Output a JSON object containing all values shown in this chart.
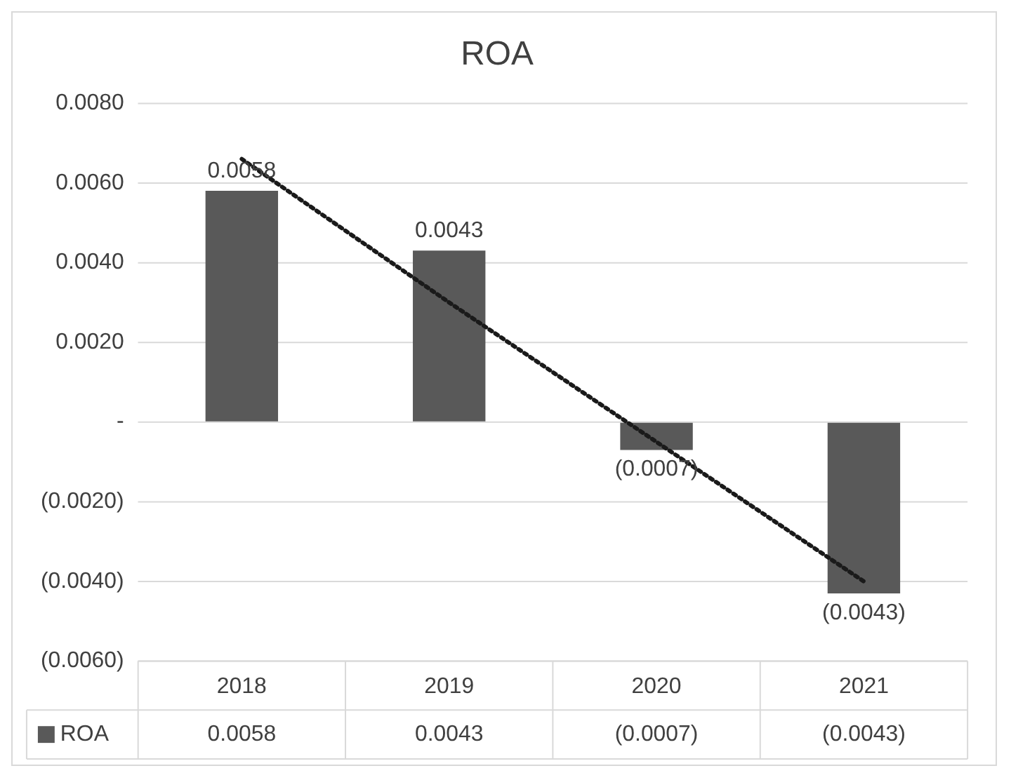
{
  "chart_data": {
    "type": "bar",
    "title": "ROA",
    "categories": [
      "2018",
      "2019",
      "2020",
      "2021"
    ],
    "series": [
      {
        "name": "ROA",
        "color": "#595959",
        "values": [
          0.0058,
          0.0043,
          -0.0007,
          -0.0043
        ],
        "value_labels": [
          "0.0058",
          "0.0043",
          "(0.0007)",
          "(0.0043)"
        ]
      },
      {
        "type": "line",
        "color": "#1a1a1a",
        "line_style": "dotted",
        "values": [
          0.0066,
          0.003,
          -0.0005,
          -0.004
        ]
      }
    ],
    "ylim": [
      -0.006,
      0.008
    ],
    "yticks": [
      {
        "value": -0.006,
        "label": "(0.0060)"
      },
      {
        "value": -0.004,
        "label": "(0.0040)"
      },
      {
        "value": -0.002,
        "label": "(0.0020)"
      },
      {
        "value": 0,
        "label": "-"
      },
      {
        "value": 0.002,
        "label": "0.0020"
      },
      {
        "value": 0.004,
        "label": "0.0040"
      },
      {
        "value": 0.006,
        "label": "0.0060"
      },
      {
        "value": 0.008,
        "label": "0.0080"
      }
    ],
    "grid": "y",
    "legend": "bottom"
  }
}
